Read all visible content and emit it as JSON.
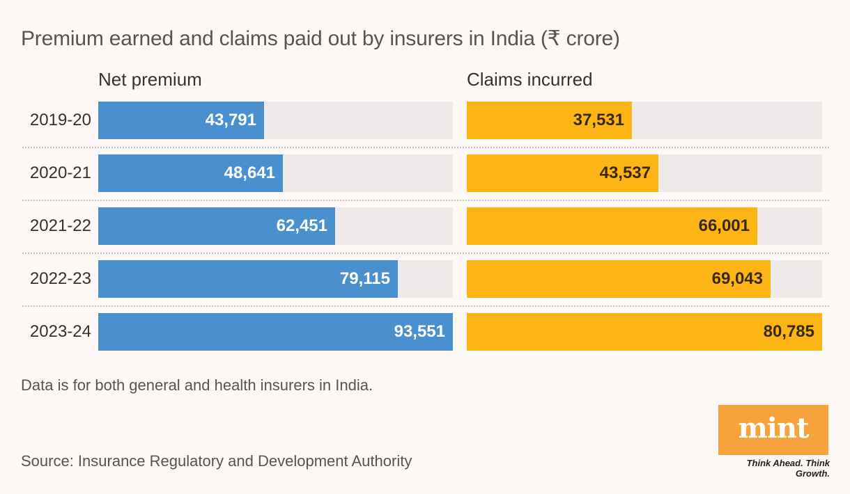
{
  "title": "Premium earned and claims paid out by insurers in India (₹ crore)",
  "note": "Data is for both general and health insurers in India.",
  "source": "Source: Insurance Regulatory and Development Authority",
  "brand": {
    "logo": "mint",
    "tagline": "Think Ahead. Think Growth."
  },
  "colors": {
    "premium": "#4a90cf",
    "claims": "#fdb515",
    "track": "#efeaea",
    "background": "#fdf8f5"
  },
  "chart_data": {
    "type": "bar",
    "orientation": "horizontal",
    "title": "Premium earned and claims paid out by insurers in India (₹ crore)",
    "categories": [
      "2019-20",
      "2020-21",
      "2021-22",
      "2022-23",
      "2023-24"
    ],
    "series": [
      {
        "name": "Net premium",
        "values": [
          43791,
          48641,
          62451,
          79115,
          93551
        ],
        "labels": [
          "43,791",
          "48,641",
          "62,451",
          "79,115",
          "93,551"
        ]
      },
      {
        "name": "Claims incurred",
        "values": [
          37531,
          43537,
          66001,
          69043,
          80785
        ],
        "labels": [
          "37,531",
          "43,537",
          "66,001",
          "69,043",
          "80,785"
        ]
      }
    ],
    "xlim_premium": [
      0,
      93551
    ],
    "xlim_claims": [
      0,
      80785
    ]
  }
}
